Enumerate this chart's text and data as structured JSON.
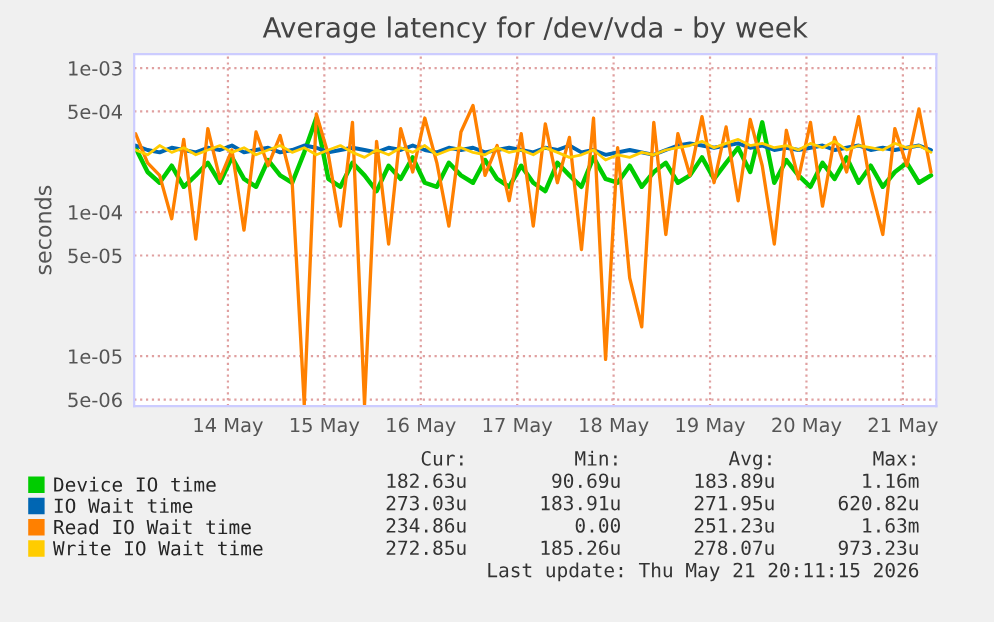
{
  "chart_data": {
    "type": "line",
    "title": "Average latency for /dev/vda - by week",
    "ylabel": "seconds",
    "log": "y",
    "grid": true,
    "legend": "bottom",
    "x": [
      "2026-05-13T01:00",
      "2026-05-13T04:00",
      "2026-05-13T07:00",
      "2026-05-13T10:00",
      "2026-05-13T13:00",
      "2026-05-13T16:00",
      "2026-05-13T19:00",
      "2026-05-13T22:00",
      "2026-05-14T01:00",
      "2026-05-14T04:00",
      "2026-05-14T07:00",
      "2026-05-14T10:00",
      "2026-05-14T13:00",
      "2026-05-14T16:00",
      "2026-05-14T19:00",
      "2026-05-14T22:00",
      "2026-05-15T01:00",
      "2026-05-15T04:00",
      "2026-05-15T07:00",
      "2026-05-15T10:00",
      "2026-05-15T13:00",
      "2026-05-15T16:00",
      "2026-05-15T19:00",
      "2026-05-15T22:00",
      "2026-05-16T01:00",
      "2026-05-16T04:00",
      "2026-05-16T07:00",
      "2026-05-16T10:00",
      "2026-05-16T13:00",
      "2026-05-16T16:00",
      "2026-05-16T19:00",
      "2026-05-16T22:00",
      "2026-05-17T01:00",
      "2026-05-17T04:00",
      "2026-05-17T07:00",
      "2026-05-17T10:00",
      "2026-05-17T13:00",
      "2026-05-17T16:00",
      "2026-05-17T19:00",
      "2026-05-17T22:00",
      "2026-05-18T01:00",
      "2026-05-18T04:00",
      "2026-05-18T07:00",
      "2026-05-18T10:00",
      "2026-05-18T13:00",
      "2026-05-18T16:00",
      "2026-05-18T19:00",
      "2026-05-18T22:00",
      "2026-05-19T01:00",
      "2026-05-19T04:00",
      "2026-05-19T07:00",
      "2026-05-19T10:00",
      "2026-05-19T13:00",
      "2026-05-19T16:00",
      "2026-05-19T19:00",
      "2026-05-19T22:00",
      "2026-05-20T01:00",
      "2026-05-20T04:00",
      "2026-05-20T07:00",
      "2026-05-20T10:00",
      "2026-05-20T13:00",
      "2026-05-20T16:00",
      "2026-05-20T19:00",
      "2026-05-20T22:00",
      "2026-05-21T01:00",
      "2026-05-21T04:00",
      "2026-05-21T07:00"
    ],
    "xlim": [
      "2026-05-13T00:40",
      "2026-05-21T08:20"
    ],
    "xticks": [
      {
        "value": "2026-05-14",
        "label": "14 May"
      },
      {
        "value": "2026-05-15",
        "label": "15 May"
      },
      {
        "value": "2026-05-16",
        "label": "16 May"
      },
      {
        "value": "2026-05-17",
        "label": "17 May"
      },
      {
        "value": "2026-05-18",
        "label": "18 May"
      },
      {
        "value": "2026-05-19",
        "label": "19 May"
      },
      {
        "value": "2026-05-20",
        "label": "20 May"
      },
      {
        "value": "2026-05-21",
        "label": "21 May"
      }
    ],
    "ylim": [
      4.5e-06,
      0.00125
    ],
    "yticks": [
      {
        "value": 5e-06,
        "label": "5e-06"
      },
      {
        "value": 1e-05,
        "label": "1e-05"
      },
      {
        "value": 5e-05,
        "label": "5e-05"
      },
      {
        "value": 0.0001,
        "label": "1e-04"
      },
      {
        "value": 0.0005,
        "label": "5e-04"
      },
      {
        "value": 0.001,
        "label": "1e-03"
      }
    ],
    "series": [
      {
        "name": "Device IO time",
        "color": "#00cc00",
        "values": [
          0.00028,
          0.00019,
          0.00016,
          0.00021,
          0.00015,
          0.00018,
          0.00022,
          0.00016,
          0.00024,
          0.00017,
          0.00015,
          0.00023,
          0.00018,
          0.00016,
          0.00026,
          0.00045,
          0.00017,
          0.00015,
          0.00022,
          0.00018,
          0.00014,
          0.00021,
          0.00017,
          0.00024,
          0.00016,
          0.00015,
          0.00022,
          0.00018,
          0.00016,
          0.00023,
          0.00017,
          0.00015,
          0.00021,
          0.00016,
          0.00014,
          0.00022,
          0.00018,
          0.00015,
          0.00024,
          0.00017,
          0.00016,
          0.00021,
          0.00015,
          0.00019,
          0.00022,
          0.00016,
          0.00018,
          0.00024,
          0.00017,
          0.00022,
          0.00028,
          0.00019,
          0.00042,
          0.00016,
          0.00023,
          0.00018,
          0.00015,
          0.00022,
          0.00017,
          0.00024,
          0.00016,
          0.00021,
          0.00015,
          0.00019,
          0.00022,
          0.00016,
          0.00018
        ]
      },
      {
        "name": "IO Wait time",
        "color": "#0066b3",
        "values": [
          0.00029,
          0.00027,
          0.00026,
          0.00028,
          0.00027,
          0.00026,
          0.00028,
          0.00027,
          0.00029,
          0.00026,
          0.00027,
          0.00028,
          0.00026,
          0.00027,
          0.00029,
          0.00028,
          0.00026,
          0.00027,
          0.00028,
          0.00027,
          0.00026,
          0.00028,
          0.00027,
          0.00029,
          0.00027,
          0.00026,
          0.00028,
          0.00027,
          0.00028,
          0.00026,
          0.00027,
          0.00028,
          0.00027,
          0.00026,
          0.00028,
          0.00027,
          0.00029,
          0.00026,
          0.00027,
          0.00025,
          0.00026,
          0.00027,
          0.00026,
          0.00025,
          0.00027,
          0.00029,
          0.0003,
          0.00029,
          0.00028,
          0.00029,
          0.0003,
          0.00028,
          0.00029,
          0.00027,
          0.00028,
          0.00027,
          0.00028,
          0.00029,
          0.00027,
          0.00028,
          0.00029,
          0.00027,
          0.00028,
          0.00027,
          0.00028,
          0.00029,
          0.00027
        ]
      },
      {
        "name": "Read IO Wait time",
        "color": "#ff8000",
        "values": [
          0.00035,
          0.00022,
          0.00018,
          9e-05,
          0.00032,
          6.5e-05,
          0.00038,
          0.00017,
          0.00027,
          7.5e-05,
          0.00036,
          0.00021,
          0.00034,
          0.00016,
          4.6e-06,
          0.00048,
          0.00025,
          8e-05,
          0.00042,
          4.6e-06,
          0.00031,
          6e-05,
          0.00038,
          0.00019,
          0.00045,
          0.00022,
          8e-05,
          0.00036,
          0.00055,
          0.00018,
          0.00029,
          0.00012,
          0.00035,
          8e-05,
          0.00041,
          0.00016,
          0.00033,
          5.5e-05,
          0.00045,
          9.5e-06,
          0.00028,
          3.5e-05,
          1.6e-05,
          0.00042,
          7e-05,
          0.00035,
          0.00018,
          0.00046,
          0.00016,
          0.00039,
          0.00012,
          0.00044,
          0.00021,
          6e-05,
          0.00037,
          0.00017,
          0.00042,
          0.00011,
          0.00033,
          0.00019,
          0.00046,
          0.00015,
          7e-05,
          0.00038,
          0.00021,
          0.00052,
          0.00019
        ]
      },
      {
        "name": "Write IO Wait time",
        "color": "#ffcc00",
        "values": [
          0.00027,
          0.00025,
          0.00029,
          0.00026,
          0.00028,
          0.00025,
          0.00027,
          0.00029,
          0.00026,
          0.00028,
          0.00025,
          0.00027,
          0.00029,
          0.00026,
          0.00028,
          0.00025,
          0.00027,
          0.00029,
          0.00026,
          0.00024,
          0.00027,
          0.00025,
          0.00028,
          0.00026,
          0.00029,
          0.00025,
          0.00027,
          0.00028,
          0.00026,
          0.00025,
          0.00028,
          0.00026,
          0.00027,
          0.00025,
          0.00028,
          0.00026,
          0.00024,
          0.00025,
          0.00027,
          0.00023,
          0.00025,
          0.00024,
          0.00026,
          0.00025,
          0.00027,
          0.00028,
          0.00029,
          0.00031,
          0.00028,
          0.0003,
          0.00032,
          0.00029,
          0.0003,
          0.00028,
          0.00029,
          0.00027,
          0.0003,
          0.00028,
          0.00031,
          0.00027,
          0.00029,
          0.00028,
          0.00027,
          0.0003,
          0.00028,
          0.00029,
          0.00026
        ]
      }
    ],
    "annotations": [
      "Cur:",
      "Min:",
      "Avg:",
      "Max:",
      "182.63u",
      "90.69u",
      "183.89u",
      "1.16m",
      "273.03u",
      "183.91u",
      "271.95u",
      "620.82u",
      "234.86u",
      "0.00",
      "251.23u",
      "1.63m",
      "272.85u",
      "185.26u",
      "278.07u",
      "973.23u",
      "Last update: Thu May 21 20:11:15 2026"
    ]
  }
}
